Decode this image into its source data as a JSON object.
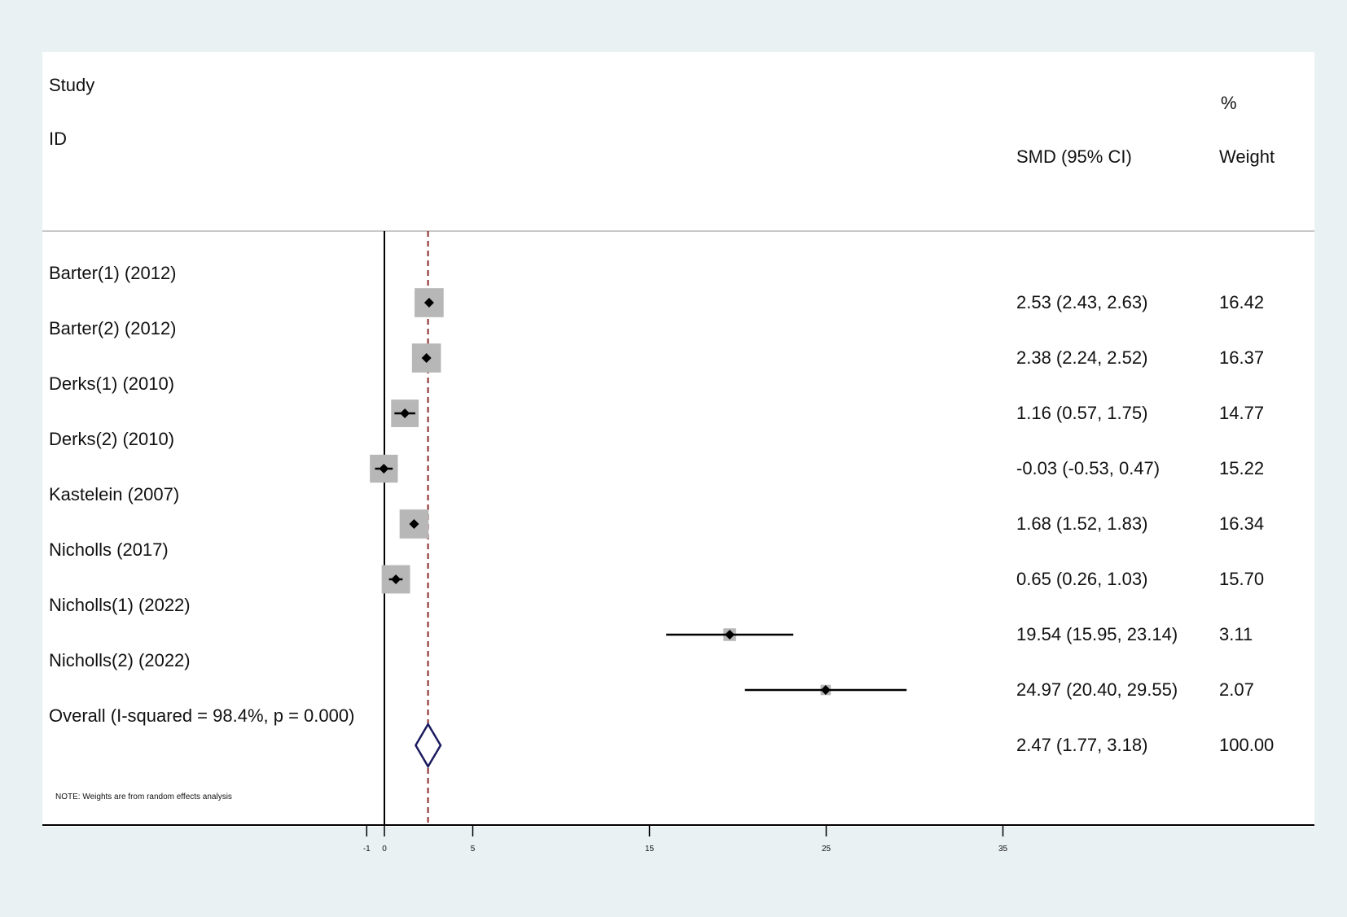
{
  "header": {
    "study": "Study",
    "id": "ID",
    "percent": "%",
    "smd": "SMD (95% CI)",
    "weight": "Weight"
  },
  "note": "NOTE: Weights are from random effects analysis",
  "chart_data": {
    "type": "forest",
    "xlabel": "",
    "ylabel": "",
    "x_ticks": [
      -1,
      0,
      5,
      15,
      25,
      35
    ],
    "x_tick_labels": [
      "-1",
      "0",
      "5",
      "15",
      "25",
      "35"
    ],
    "xlim": [
      -1,
      35
    ],
    "null_line": 0,
    "studies": [
      {
        "label": "Barter(1) (2012)",
        "smd": 2.53,
        "lower": 2.43,
        "upper": 2.63,
        "ci_text": "2.53 (2.43, 2.63)",
        "weight": 16.42,
        "weight_text": "16.42"
      },
      {
        "label": "Barter(2) (2012)",
        "smd": 2.38,
        "lower": 2.24,
        "upper": 2.52,
        "ci_text": "2.38 (2.24, 2.52)",
        "weight": 16.37,
        "weight_text": "16.37"
      },
      {
        "label": "Derks(1) (2010)",
        "smd": 1.16,
        "lower": 0.57,
        "upper": 1.75,
        "ci_text": "1.16 (0.57, 1.75)",
        "weight": 14.77,
        "weight_text": "14.77"
      },
      {
        "label": "Derks(2) (2010)",
        "smd": -0.03,
        "lower": -0.53,
        "upper": 0.47,
        "ci_text": "-0.03 (-0.53, 0.47)",
        "weight": 15.22,
        "weight_text": "15.22"
      },
      {
        "label": "Kastelein (2007)",
        "smd": 1.68,
        "lower": 1.52,
        "upper": 1.83,
        "ci_text": "1.68 (1.52, 1.83)",
        "weight": 16.34,
        "weight_text": "16.34"
      },
      {
        "label": "Nicholls (2017)",
        "smd": 0.65,
        "lower": 0.26,
        "upper": 1.03,
        "ci_text": "0.65 (0.26, 1.03)",
        "weight": 15.7,
        "weight_text": "15.70"
      },
      {
        "label": "Nicholls(1) (2022)",
        "smd": 19.54,
        "lower": 15.95,
        "upper": 23.14,
        "ci_text": "19.54 (15.95, 23.14)",
        "weight": 3.11,
        "weight_text": "3.11"
      },
      {
        "label": "Nicholls(2) (2022)",
        "smd": 24.97,
        "lower": 20.4,
        "upper": 29.55,
        "ci_text": "24.97 (20.40, 29.55)",
        "weight": 2.07,
        "weight_text": "2.07"
      }
    ],
    "overall": {
      "label": "Overall  (I-squared = 98.4%, p = 0.000)",
      "smd": 2.47,
      "lower": 1.77,
      "upper": 3.18,
      "ci_text": "2.47 (1.77, 3.18)",
      "weight": 100.0,
      "weight_text": "100.00"
    },
    "colors": {
      "box": "#b7b7b7",
      "point": "#000000",
      "ci_line": "#000000",
      "overall_line": "#8b2a2a",
      "diamond": "#1a1a5e"
    }
  }
}
